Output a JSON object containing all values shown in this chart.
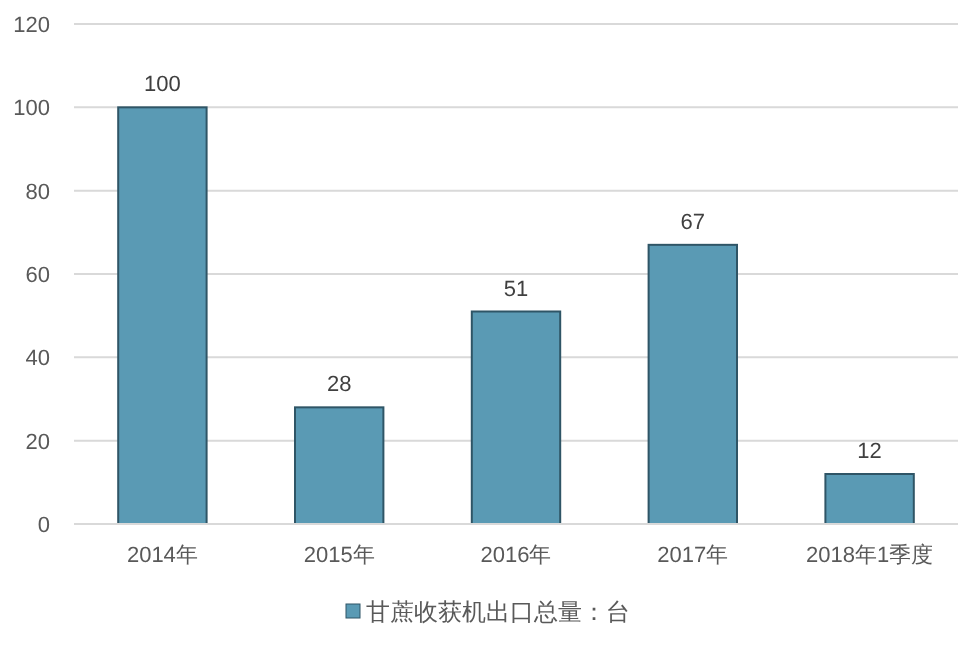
{
  "chart_data": {
    "type": "bar",
    "categories": [
      "2014年",
      "2015年",
      "2016年",
      "2017年",
      "2018年1季度"
    ],
    "series": [
      {
        "name": "甘蔗收获机出口总量：台",
        "color": "#5a9ab4",
        "values": [
          100,
          28,
          51,
          67,
          12
        ]
      }
    ],
    "ylim": [
      0,
      120
    ],
    "yticks": [
      0,
      20,
      40,
      60,
      80,
      100,
      120
    ],
    "grid": "y",
    "legend": "bottom",
    "data_labels": true
  }
}
